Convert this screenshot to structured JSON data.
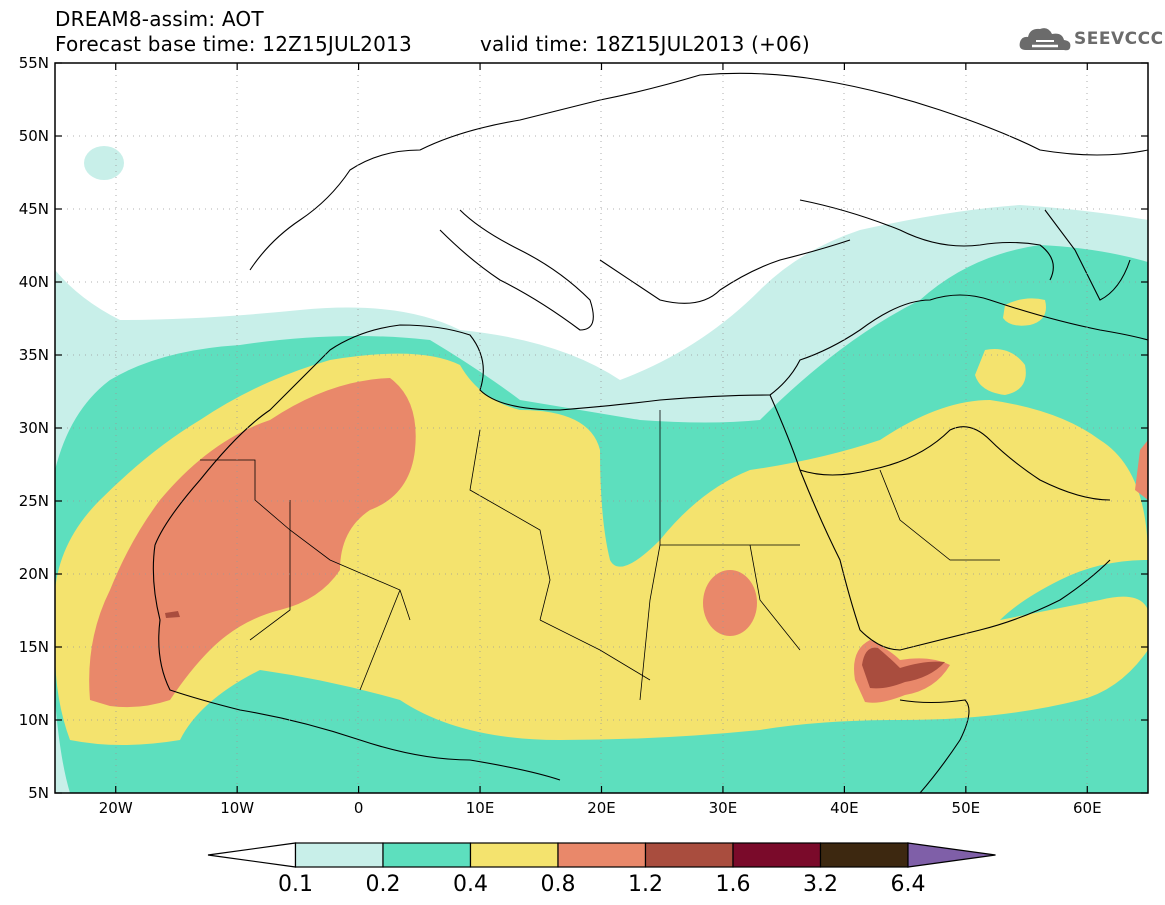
{
  "header": {
    "title_line1": "DREAM8-assim: AOT",
    "base_time": "Forecast base time: 12Z15JUL2013",
    "valid_time": "valid time: 18Z15JUL2013 (+06)"
  },
  "logo": {
    "text": "SEEVCCC",
    "icon": "cloud-icon"
  },
  "map": {
    "lon_range": [
      -25,
      65
    ],
    "lat_range": [
      5,
      55
    ],
    "x_ticks": [
      "20W",
      "10W",
      "0",
      "10E",
      "20E",
      "30E",
      "40E",
      "50E",
      "60E"
    ],
    "y_ticks": [
      "5N",
      "10N",
      "15N",
      "20N",
      "25N",
      "30N",
      "35N",
      "40N",
      "45N",
      "50N",
      "55N"
    ]
  },
  "colorbar": {
    "labels": [
      "0.1",
      "0.2",
      "0.4",
      "0.8",
      "1.2",
      "1.6",
      "3.2",
      "6.4"
    ],
    "colors": [
      "#ffffff",
      "#c8efe9",
      "#5ddfbe",
      "#f4e36e",
      "#e9886a",
      "#a94d3e",
      "#7a0a2a",
      "#3d2810",
      "#7f5fa8"
    ]
  }
}
